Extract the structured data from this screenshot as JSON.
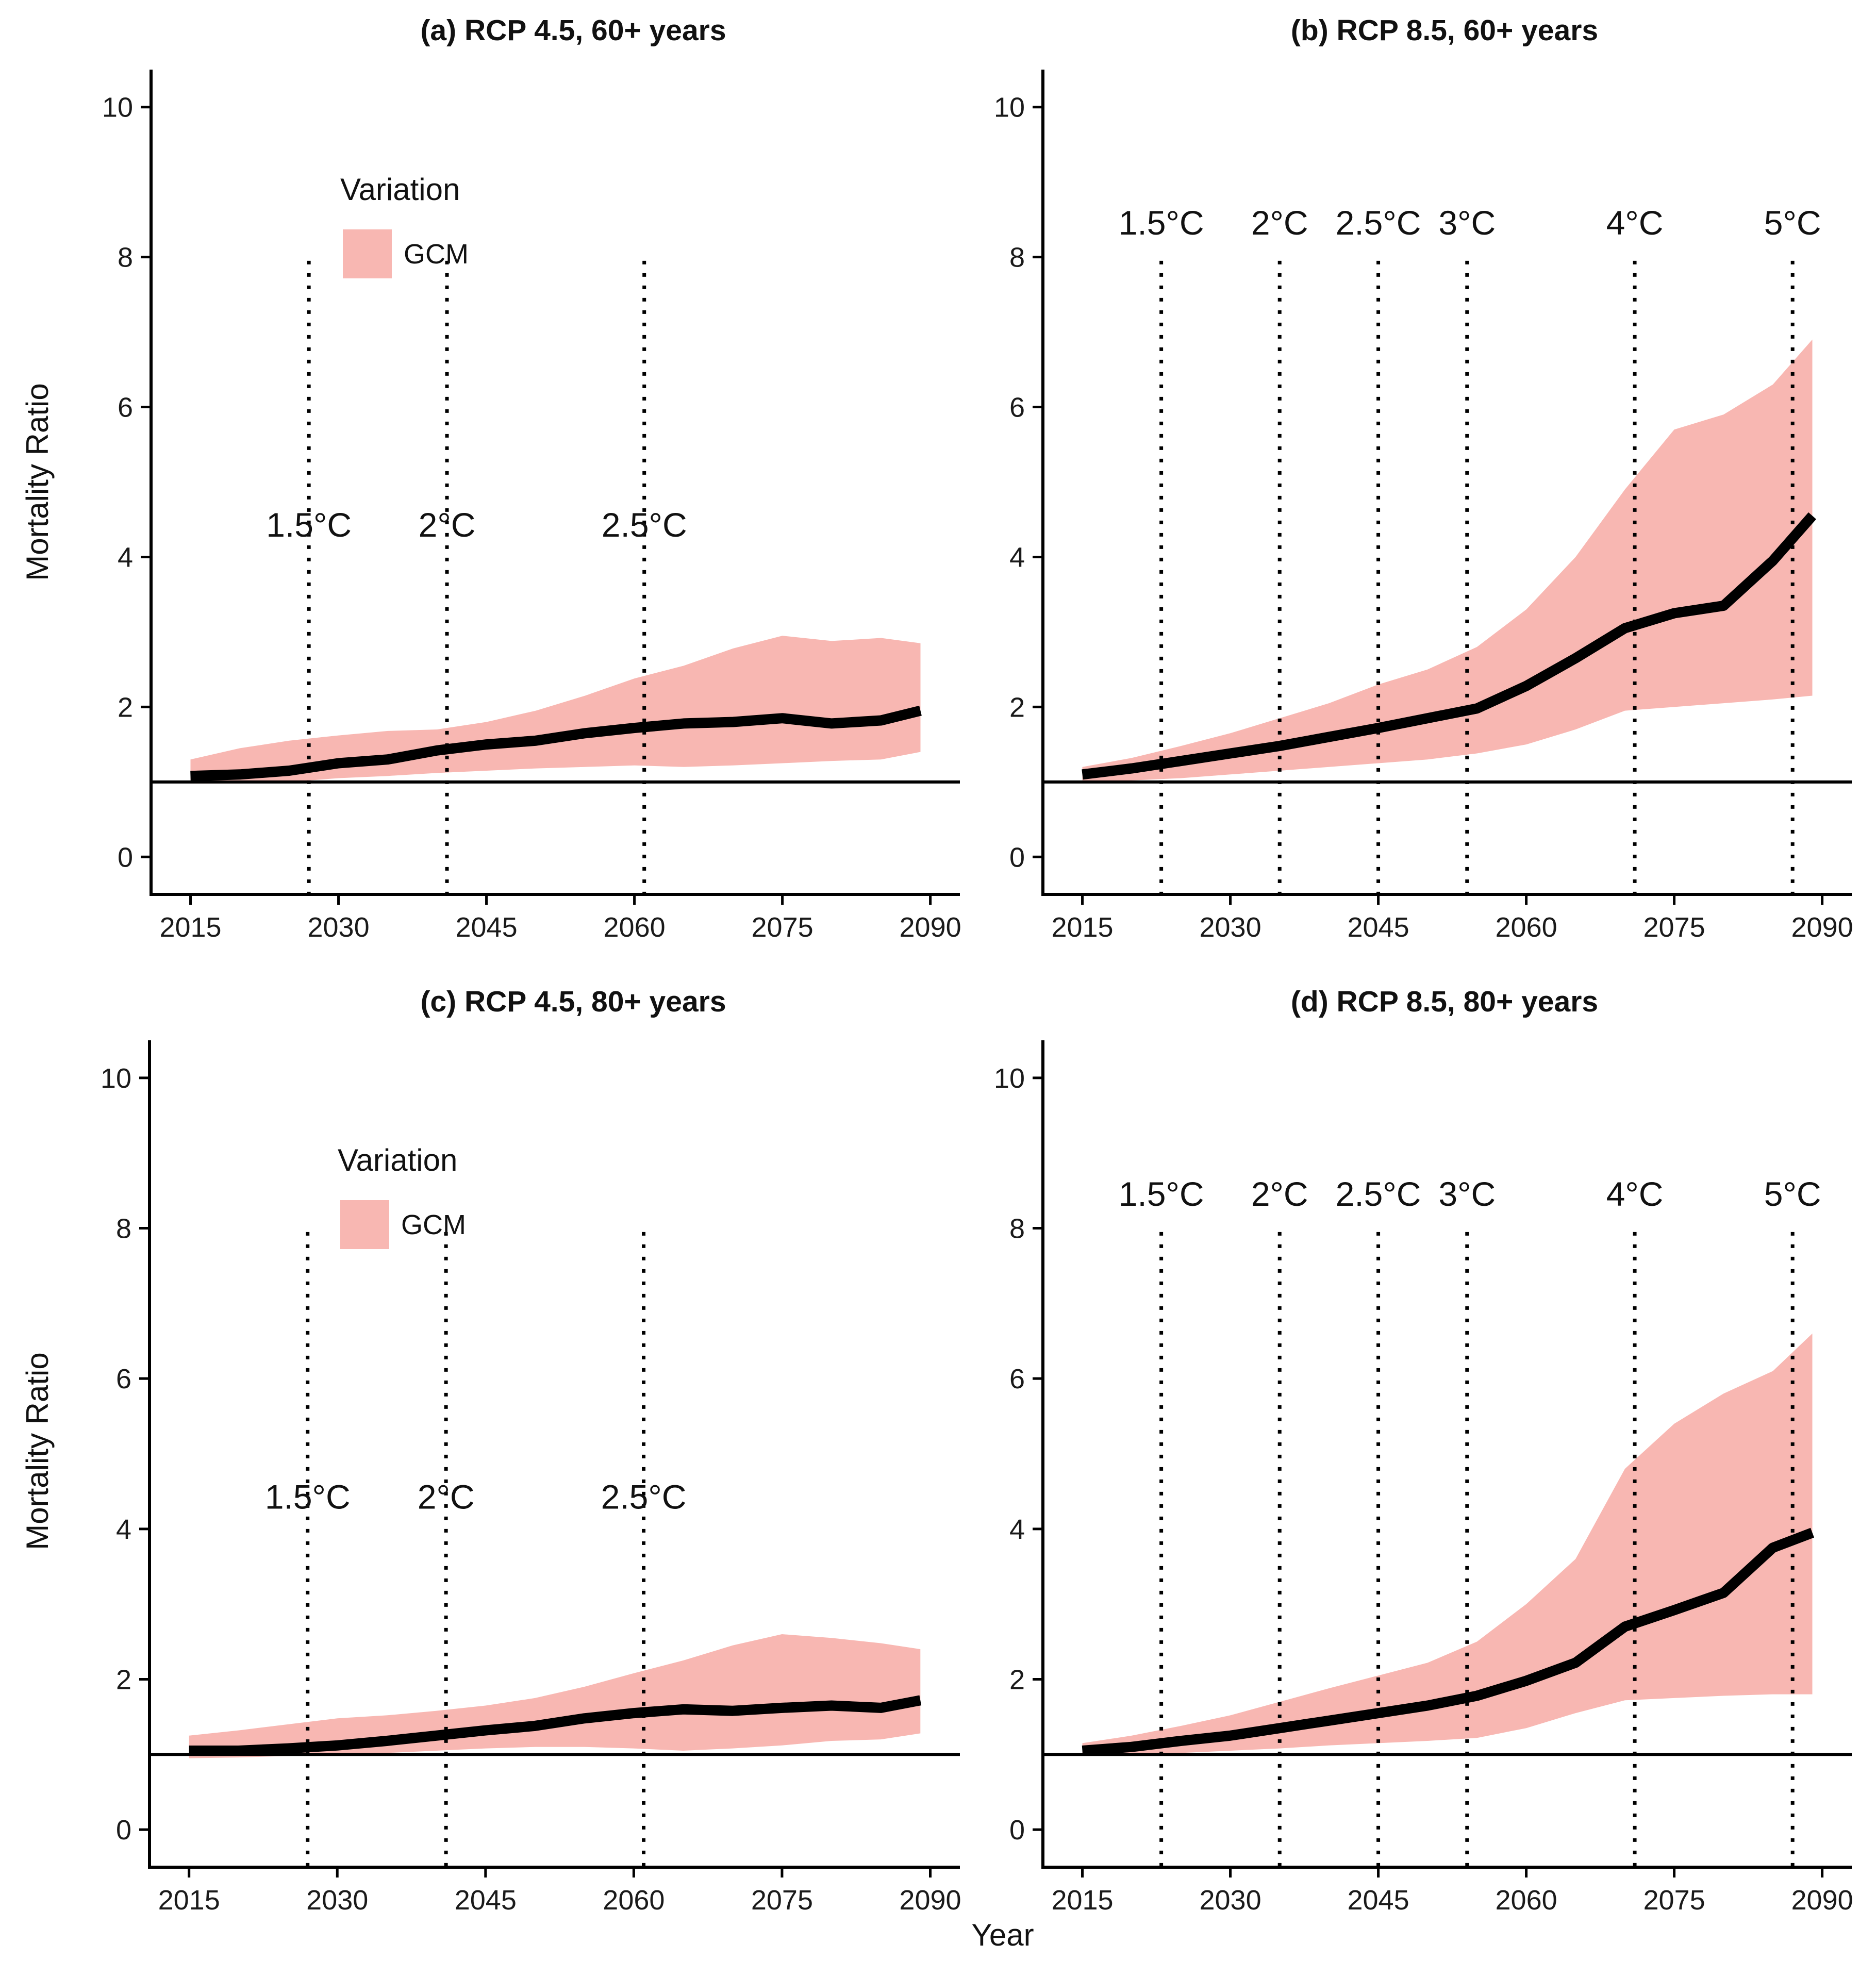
{
  "figure": {
    "ylabel": "Mortality Ratio",
    "xlabel": "Year",
    "legend": {
      "title": "Variation",
      "items": [
        {
          "label": "GCM",
          "color": "#f8b7b2"
        }
      ]
    },
    "colors": {
      "band": "#f8b7b2",
      "line": "#000000",
      "axis": "#000000"
    }
  },
  "chart_data": [
    {
      "type": "area",
      "title": "(a) RCP 4.5, 60+ years",
      "x": [
        2015,
        2020,
        2025,
        2030,
        2035,
        2040,
        2045,
        2050,
        2055,
        2060,
        2065,
        2070,
        2075,
        2080,
        2085,
        2089
      ],
      "series": [
        {
          "name": "Mortality Ratio",
          "values": [
            1.08,
            1.1,
            1.15,
            1.25,
            1.3,
            1.42,
            1.5,
            1.55,
            1.65,
            1.72,
            1.78,
            1.8,
            1.85,
            1.78,
            1.82,
            1.95
          ]
        },
        {
          "name": "GCM upper",
          "values": [
            1.3,
            1.45,
            1.55,
            1.62,
            1.68,
            1.7,
            1.8,
            1.95,
            2.15,
            2.38,
            2.55,
            2.78,
            2.95,
            2.88,
            2.92,
            2.85
          ]
        },
        {
          "name": "GCM lower",
          "values": [
            0.98,
            0.98,
            1.0,
            1.05,
            1.08,
            1.12,
            1.15,
            1.18,
            1.2,
            1.22,
            1.2,
            1.22,
            1.25,
            1.28,
            1.3,
            1.4
          ]
        }
      ],
      "thresholds": [
        {
          "label": "1.5°C",
          "year": 2027
        },
        {
          "label": "2°C",
          "year": 2041
        },
        {
          "label": "2.5°C",
          "year": 2061
        }
      ],
      "xticks": [
        "2015",
        "2030",
        "2045",
        "2060",
        "2075",
        "2090"
      ],
      "yticks": [
        "0",
        "2",
        "4",
        "6",
        "8",
        "10"
      ],
      "xlim": [
        2011,
        2093
      ],
      "ylim": [
        -0.5,
        10.5
      ],
      "reference_line": 1,
      "show_legend": true
    },
    {
      "type": "area",
      "title": "(b) RCP 8.5, 60+ years",
      "x": [
        2015,
        2020,
        2025,
        2030,
        2035,
        2040,
        2045,
        2050,
        2055,
        2060,
        2065,
        2070,
        2075,
        2080,
        2085,
        2089
      ],
      "series": [
        {
          "name": "Mortality Ratio",
          "values": [
            1.1,
            1.18,
            1.28,
            1.38,
            1.48,
            1.6,
            1.72,
            1.85,
            1.98,
            2.28,
            2.65,
            3.05,
            3.25,
            3.35,
            3.95,
            4.55
          ]
        },
        {
          "name": "GCM upper",
          "values": [
            1.2,
            1.32,
            1.48,
            1.65,
            1.85,
            2.05,
            2.3,
            2.5,
            2.8,
            3.3,
            4.0,
            4.9,
            5.7,
            5.9,
            6.3,
            6.9
          ]
        },
        {
          "name": "GCM lower",
          "values": [
            1.0,
            1.02,
            1.05,
            1.1,
            1.15,
            1.2,
            1.25,
            1.3,
            1.38,
            1.5,
            1.7,
            1.95,
            2.0,
            2.05,
            2.1,
            2.15
          ]
        }
      ],
      "thresholds": [
        {
          "label": "1.5°C",
          "year": 2023
        },
        {
          "label": "2°C",
          "year": 2035
        },
        {
          "label": "2.5°C",
          "year": 2045
        },
        {
          "label": "3°C",
          "year": 2054
        },
        {
          "label": "4°C",
          "year": 2071
        },
        {
          "label": "5°C",
          "year": 2087
        }
      ],
      "xticks": [
        "2015",
        "2030",
        "2045",
        "2060",
        "2075",
        "2090"
      ],
      "yticks": [
        "0",
        "2",
        "4",
        "6",
        "8",
        "10"
      ],
      "xlim": [
        2011,
        2093
      ],
      "ylim": [
        -0.5,
        10.5
      ],
      "reference_line": 1,
      "show_legend": false
    },
    {
      "type": "area",
      "title": "(c) RCP 4.5, 80+ years",
      "x": [
        2015,
        2020,
        2025,
        2030,
        2035,
        2040,
        2045,
        2050,
        2055,
        2060,
        2065,
        2070,
        2075,
        2080,
        2085,
        2089
      ],
      "series": [
        {
          "name": "Mortality Ratio",
          "values": [
            1.05,
            1.05,
            1.08,
            1.12,
            1.18,
            1.25,
            1.32,
            1.38,
            1.48,
            1.55,
            1.6,
            1.58,
            1.62,
            1.65,
            1.62,
            1.72
          ]
        },
        {
          "name": "GCM upper",
          "values": [
            1.25,
            1.32,
            1.4,
            1.48,
            1.52,
            1.58,
            1.65,
            1.75,
            1.9,
            2.08,
            2.25,
            2.45,
            2.6,
            2.55,
            2.48,
            2.4
          ]
        },
        {
          "name": "GCM lower",
          "values": [
            0.95,
            0.96,
            0.98,
            1.0,
            1.02,
            1.05,
            1.08,
            1.1,
            1.1,
            1.08,
            1.05,
            1.08,
            1.12,
            1.18,
            1.2,
            1.28
          ]
        }
      ],
      "thresholds": [
        {
          "label": "1.5°C",
          "year": 2027
        },
        {
          "label": "2°C",
          "year": 2041
        },
        {
          "label": "2.5°C",
          "year": 2061
        }
      ],
      "xticks": [
        "2015",
        "2030",
        "2045",
        "2060",
        "2075",
        "2090"
      ],
      "yticks": [
        "0",
        "2",
        "4",
        "6",
        "8",
        "10"
      ],
      "xlim": [
        2011,
        2093
      ],
      "ylim": [
        -0.5,
        10.5
      ],
      "reference_line": 1,
      "show_legend": true
    },
    {
      "type": "area",
      "title": "(d) RCP 8.5, 80+ years",
      "x": [
        2015,
        2020,
        2025,
        2030,
        2035,
        2040,
        2045,
        2050,
        2055,
        2060,
        2065,
        2070,
        2075,
        2080,
        2085,
        2089
      ],
      "series": [
        {
          "name": "Mortality Ratio",
          "values": [
            1.05,
            1.1,
            1.18,
            1.25,
            1.35,
            1.45,
            1.55,
            1.65,
            1.78,
            1.98,
            2.22,
            2.7,
            2.92,
            3.15,
            3.75,
            3.95
          ]
        },
        {
          "name": "GCM upper",
          "values": [
            1.15,
            1.25,
            1.38,
            1.52,
            1.7,
            1.88,
            2.05,
            2.22,
            2.5,
            3.0,
            3.6,
            4.8,
            5.4,
            5.8,
            6.1,
            6.6
          ]
        },
        {
          "name": "GCM lower",
          "values": [
            0.98,
            1.0,
            1.02,
            1.05,
            1.08,
            1.12,
            1.15,
            1.18,
            1.22,
            1.35,
            1.55,
            1.72,
            1.75,
            1.78,
            1.8,
            1.8
          ]
        }
      ],
      "thresholds": [
        {
          "label": "1.5°C",
          "year": 2023
        },
        {
          "label": "2°C",
          "year": 2035
        },
        {
          "label": "2.5°C",
          "year": 2045
        },
        {
          "label": "3°C",
          "year": 2054
        },
        {
          "label": "4°C",
          "year": 2071
        },
        {
          "label": "5°C",
          "year": 2087
        }
      ],
      "xticks": [
        "2015",
        "2030",
        "2045",
        "2060",
        "2075",
        "2090"
      ],
      "yticks": [
        "0",
        "2",
        "4",
        "6",
        "8",
        "10"
      ],
      "xlim": [
        2011,
        2093
      ],
      "ylim": [
        -0.5,
        10.5
      ],
      "reference_line": 1,
      "show_legend": false
    }
  ]
}
